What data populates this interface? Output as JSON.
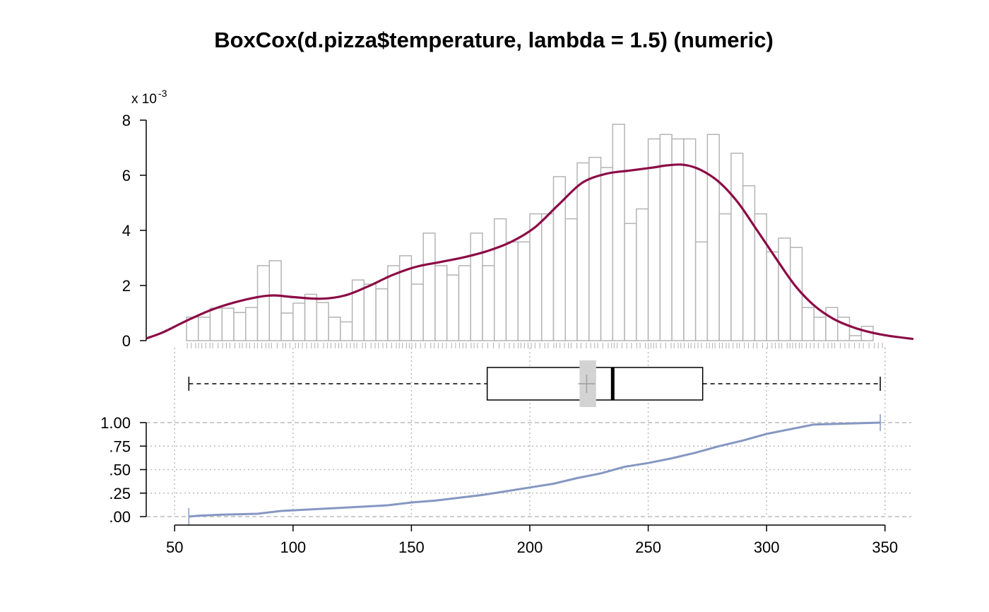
{
  "chart_data": {
    "type": "histogram",
    "title": "BoxCox(d.pizza$temperature, lambda = 1.5) (numeric)",
    "x_axis": {
      "range": [
        38,
        362
      ],
      "ticks": [
        50,
        100,
        150,
        200,
        250,
        300,
        350
      ],
      "tick_labels": [
        "50",
        "100",
        "150",
        "200",
        "250",
        "300",
        "350"
      ],
      "grid": "dotted vertical at ticks"
    },
    "histogram": {
      "y_multiplier_base": "x 10",
      "y_multiplier_exponent": "-3",
      "ylim": [
        0,
        8.1
      ],
      "y_ticks": [
        0,
        2,
        4,
        6,
        8
      ],
      "y_tick_labels": [
        "0",
        "2",
        "4",
        "6",
        "8"
      ],
      "bin_start": 55,
      "bin_width": 5,
      "densities": [
        0.85,
        0.85,
        1.18,
        1.18,
        1.02,
        1.2,
        2.72,
        2.9,
        1.0,
        1.36,
        1.68,
        1.38,
        0.85,
        0.68,
        2.2,
        2.05,
        1.88,
        2.72,
        3.08,
        2.05,
        3.9,
        2.72,
        2.38,
        2.72,
        3.9,
        2.72,
        4.42,
        3.58,
        3.58,
        4.6,
        4.6,
        5.95,
        4.42,
        6.45,
        6.65,
        6.28,
        7.85,
        4.25,
        4.78,
        7.32,
        7.48,
        7.32,
        7.32,
        3.58,
        7.48,
        4.6,
        6.8,
        5.62,
        4.6,
        3.22,
        3.72,
        3.38,
        1.2,
        0.85,
        1.2,
        0.85,
        0.18,
        0.52
      ],
      "density_curve": {
        "x": [
          38,
          45,
          55,
          65,
          75,
          85,
          92,
          100,
          112,
          122,
          132,
          142,
          152,
          162,
          172,
          182,
          192,
          202,
          212,
          222,
          232,
          242,
          252,
          258,
          265,
          272,
          280,
          288,
          296,
          304,
          312,
          320,
          328,
          336,
          344,
          352,
          362
        ],
        "y": [
          0.08,
          0.3,
          0.72,
          1.1,
          1.38,
          1.58,
          1.64,
          1.58,
          1.52,
          1.64,
          1.98,
          2.38,
          2.68,
          2.85,
          3.02,
          3.25,
          3.58,
          4.1,
          4.92,
          5.72,
          6.05,
          6.17,
          6.28,
          6.36,
          6.38,
          6.2,
          5.75,
          5.0,
          4.0,
          2.98,
          2.0,
          1.28,
          0.8,
          0.5,
          0.3,
          0.17,
          0.06
        ]
      },
      "rug": "individual observations between 55 and 350",
      "colors": {
        "bars": "#b4b4b4",
        "density": "#8c0a45"
      }
    },
    "boxplot": {
      "min": 56,
      "q1": 182,
      "median": 235,
      "q3": 273,
      "max": 348,
      "mean": 224,
      "mean_ci": [
        221,
        228
      ],
      "colors": {
        "ci_band": "#d3d3d3",
        "mean_marker": "#a0a0a0"
      }
    },
    "ecdf": {
      "ylim": [
        0,
        1
      ],
      "y_ticks": [
        0,
        0.25,
        0.5,
        0.75,
        1.0
      ],
      "y_tick_labels": [
        ".00",
        ".25",
        ".50",
        ".75",
        "1.00"
      ],
      "x": [
        56,
        60,
        70,
        85,
        95,
        110,
        125,
        140,
        150,
        160,
        170,
        180,
        190,
        200,
        210,
        220,
        230,
        240,
        250,
        260,
        270,
        280,
        290,
        300,
        310,
        320,
        335,
        348
      ],
      "y": [
        0.0,
        0.01,
        0.02,
        0.03,
        0.06,
        0.08,
        0.1,
        0.12,
        0.15,
        0.17,
        0.2,
        0.23,
        0.27,
        0.31,
        0.35,
        0.41,
        0.46,
        0.53,
        0.57,
        0.62,
        0.68,
        0.75,
        0.81,
        0.88,
        0.93,
        0.98,
        0.99,
        1.0
      ],
      "color": "#8597c2"
    }
  }
}
